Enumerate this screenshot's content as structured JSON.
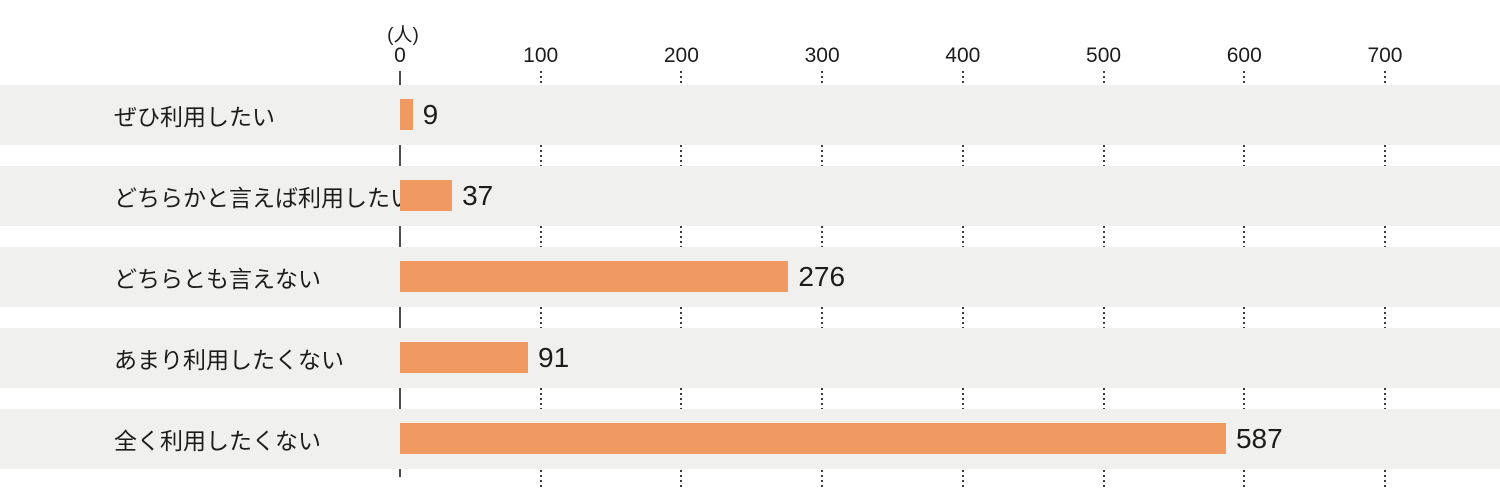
{
  "chart_data": {
    "type": "bar",
    "orientation": "horizontal",
    "unit_label": "(人)",
    "categories": [
      "ぜひ利用したい",
      "どちらかと言えば利用したい",
      "どちらとも言えない",
      "あまり利用したくない",
      "全く利用したくない"
    ],
    "values": [
      9,
      37,
      276,
      91,
      587
    ],
    "xticks": [
      0,
      100,
      200,
      300,
      400,
      500,
      600,
      700
    ],
    "xlim": [
      0,
      780
    ],
    "grid": "dotted-vertical-segments-in-row-gaps",
    "legend": "none",
    "colors": {
      "bar": "#F09A62",
      "row_band": "#F0F0EE",
      "axis_line": "#4D4D4D",
      "gridline": "#3C3C3C",
      "text": "#1C1C1C",
      "background": "#FFFFFF"
    }
  }
}
